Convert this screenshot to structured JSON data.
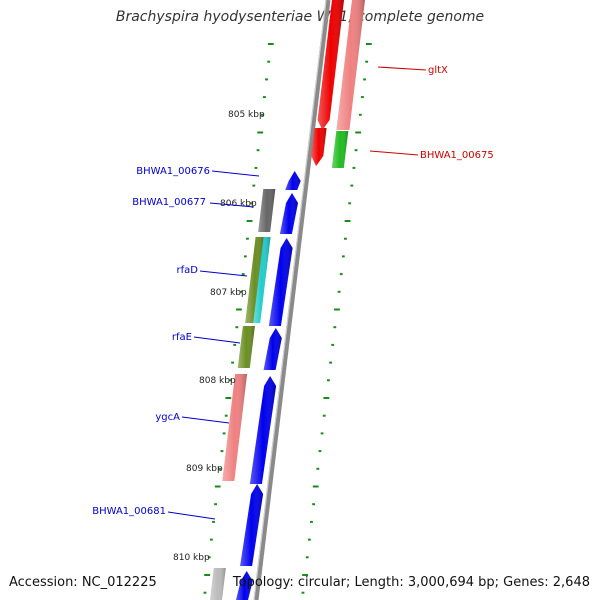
{
  "title": "Brachyspira hyodysenteriae WA1, complete genome",
  "footer": {
    "accession": "Accession: NC_012225",
    "summary": "Topology: circular; Length: 3,000,694 bp; Genes: 2,648"
  },
  "colors": {
    "backbone": "#8a8a8a",
    "tick": "#1a8a1a",
    "label_plus": "#cc0000",
    "label_minus": "#0000cc",
    "blue": "#0000ee",
    "red": "#ee0000",
    "pink": "#f08080",
    "green": "#22bb22",
    "gray": "#666666",
    "olive": "#6b8e23",
    "cyan": "#22cccc",
    "lightgray": "#bbbbbb"
  },
  "scale": {
    "ticks": [
      {
        "label": "805 kbp"
      },
      {
        "label": "806 kbp"
      },
      {
        "label": "807 kbp"
      },
      {
        "label": "808 kbp"
      },
      {
        "label": "809 kbp"
      },
      {
        "label": "810 kbp"
      }
    ]
  },
  "gene_labels": [
    {
      "text": "gltX",
      "color": "label_plus"
    },
    {
      "text": "BHWA1_00675",
      "color": "label_plus"
    },
    {
      "text": "BHWA1_00676",
      "color": "label_minus"
    },
    {
      "text": "BHWA1_00677",
      "color": "label_minus"
    },
    {
      "text": "rfaD",
      "color": "label_minus"
    },
    {
      "text": "rfaE",
      "color": "label_minus"
    },
    {
      "text": "ygcA",
      "color": "label_minus"
    },
    {
      "text": "BHWA1_00681",
      "color": "label_minus"
    }
  ]
}
